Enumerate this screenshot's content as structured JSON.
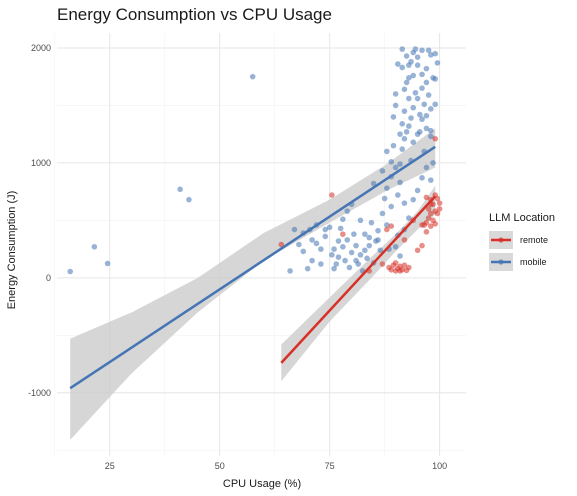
{
  "chart_data": {
    "type": "scatter",
    "title": "Energy Consumption vs CPU Usage",
    "xlabel": "CPU Usage (%)",
    "ylabel": "Energy Consumption (J)",
    "xlim": [
      13,
      106
    ],
    "ylim": [
      -1550,
      2130
    ],
    "xticks": [
      25,
      50,
      75,
      100
    ],
    "yticks": [
      -1000,
      0,
      1000,
      2000
    ],
    "grid": true,
    "legend": {
      "title": "LLM Location",
      "placement": "right",
      "entries": [
        "remote",
        "mobile"
      ]
    },
    "colors": {
      "remote": "#d73027",
      "mobile": "#4575b4",
      "band": "#cccccc"
    },
    "series": [
      {
        "name": "remote",
        "trend": {
          "x1": 64,
          "y1": -740,
          "x2": 99,
          "y2": 710
        },
        "band": [
          {
            "x": 64,
            "lo": -900,
            "hi": -580
          },
          {
            "x": 75,
            "lo": -380,
            "hi": -170
          },
          {
            "x": 85,
            "lo": 20,
            "hi": 200
          },
          {
            "x": 90,
            "lo": 230,
            "hi": 380
          },
          {
            "x": 95,
            "lo": 420,
            "hi": 580
          },
          {
            "x": 99,
            "lo": 550,
            "hi": 800
          }
        ],
        "points": [
          [
            64,
            290
          ],
          [
            75.5,
            720
          ],
          [
            78,
            380
          ],
          [
            84,
            60
          ],
          [
            87,
            120
          ],
          [
            88.5,
            90
          ],
          [
            89,
            70
          ],
          [
            89.5,
            110
          ],
          [
            90,
            60
          ],
          [
            90.5,
            80
          ],
          [
            91,
            100
          ],
          [
            91.5,
            70
          ],
          [
            92,
            110
          ],
          [
            92.5,
            65
          ],
          [
            93,
            90
          ],
          [
            90,
            130
          ],
          [
            91,
            60
          ],
          [
            88,
            420
          ],
          [
            89,
            450
          ],
          [
            92,
            330
          ],
          [
            94,
            500
          ],
          [
            95,
            240
          ],
          [
            96,
            280
          ],
          [
            96.5,
            460
          ],
          [
            97,
            400
          ],
          [
            97,
            700
          ],
          [
            97.5,
            600
          ],
          [
            97.5,
            520
          ],
          [
            98,
            680
          ],
          [
            98,
            560
          ],
          [
            98,
            450
          ],
          [
            98.5,
            640
          ],
          [
            98.5,
            500
          ],
          [
            99,
            720
          ],
          [
            99,
            580
          ],
          [
            99,
            470
          ],
          [
            99.5,
            690
          ],
          [
            99.5,
            560
          ],
          [
            100,
            650
          ],
          [
            100,
            600
          ],
          [
            97,
            480
          ],
          [
            98,
            640
          ],
          [
            99,
            1210
          ],
          [
            96,
            460
          ]
        ]
      },
      {
        "name": "mobile",
        "trend": {
          "x1": 16,
          "y1": -960,
          "x2": 99,
          "y2": 1140
        },
        "band": [
          {
            "x": 16,
            "lo": -1410,
            "hi": -530
          },
          {
            "x": 30,
            "lo": -830,
            "hi": -300
          },
          {
            "x": 45,
            "lo": -300,
            "hi": 0
          },
          {
            "x": 60,
            "lo": 150,
            "hi": 390
          },
          {
            "x": 75,
            "lo": 480,
            "hi": 680
          },
          {
            "x": 88,
            "lo": 760,
            "hi": 990
          },
          {
            "x": 99,
            "lo": 960,
            "hi": 1300
          }
        ],
        "points": [
          [
            16,
            55
          ],
          [
            21.5,
            270
          ],
          [
            24.5,
            125
          ],
          [
            41,
            770
          ],
          [
            43,
            680
          ],
          [
            57.5,
            1750
          ],
          [
            66,
            60
          ],
          [
            68,
            290
          ],
          [
            69,
            390
          ],
          [
            70.5,
            420
          ],
          [
            71,
            330
          ],
          [
            72,
            300
          ],
          [
            73,
            250
          ],
          [
            74,
            360
          ],
          [
            75,
            440
          ],
          [
            75.5,
            200
          ],
          [
            76,
            250
          ],
          [
            76.5,
            120
          ],
          [
            77,
            320
          ],
          [
            77.5,
            430
          ],
          [
            78,
            270
          ],
          [
            78.5,
            150
          ],
          [
            79,
            330
          ],
          [
            79.5,
            90
          ],
          [
            80,
            220
          ],
          [
            80.5,
            380
          ],
          [
            81,
            280
          ],
          [
            81.5,
            120
          ],
          [
            82,
            200
          ],
          [
            82.5,
            60
          ],
          [
            83,
            380
          ],
          [
            83.5,
            170
          ],
          [
            84,
            280
          ],
          [
            84.5,
            480
          ],
          [
            85,
            130
          ],
          [
            85.5,
            320
          ],
          [
            86,
            410
          ],
          [
            86.5,
            240
          ],
          [
            87,
            560
          ],
          [
            87.5,
            690
          ],
          [
            87,
            930
          ],
          [
            88,
            780
          ],
          [
            88.5,
            250
          ],
          [
            89,
            1010
          ],
          [
            89,
            880
          ],
          [
            89.5,
            1150
          ],
          [
            90,
            1600
          ],
          [
            90,
            1500
          ],
          [
            90.5,
            720
          ],
          [
            90.5,
            370
          ],
          [
            91,
            1250
          ],
          [
            91,
            990
          ],
          [
            91.5,
            1340
          ],
          [
            91.5,
            1120
          ],
          [
            92,
            1450
          ],
          [
            92,
            650
          ],
          [
            92.5,
            1700
          ],
          [
            92.5,
            1270
          ],
          [
            93,
            1850
          ],
          [
            93,
            1560
          ],
          [
            93.5,
            1390
          ],
          [
            93.5,
            1020
          ],
          [
            94,
            1960
          ],
          [
            94,
            1760
          ],
          [
            94.5,
            1610
          ],
          [
            95,
            1250
          ],
          [
            95,
            1850
          ],
          [
            95.5,
            1420
          ],
          [
            96,
            1980
          ],
          [
            96,
            1650
          ],
          [
            96.5,
            1100
          ],
          [
            97,
            1820
          ],
          [
            97,
            1410
          ],
          [
            97.5,
            1590
          ],
          [
            98,
            1230
          ],
          [
            98,
            1940
          ],
          [
            98.5,
            1000
          ],
          [
            99,
            1730
          ],
          [
            99,
            1510
          ],
          [
            99.5,
            1870
          ],
          [
            98,
            850
          ],
          [
            97,
            960
          ],
          [
            96,
            870
          ],
          [
            95,
            760
          ],
          [
            94,
            680
          ],
          [
            93,
            520
          ],
          [
            92,
            420
          ],
          [
            91,
            190
          ],
          [
            90,
            270
          ],
          [
            89,
            620
          ],
          [
            88,
            460
          ],
          [
            86,
            330
          ],
          [
            85,
            820
          ],
          [
            84,
            350
          ],
          [
            83,
            240
          ],
          [
            82,
            500
          ],
          [
            81,
            150
          ],
          [
            80,
            640
          ],
          [
            79,
            580
          ],
          [
            78,
            510
          ],
          [
            77,
            180
          ],
          [
            76,
            80
          ],
          [
            74,
            420
          ],
          [
            73,
            120
          ],
          [
            72,
            460
          ],
          [
            71,
            150
          ],
          [
            70,
            80
          ],
          [
            69,
            230
          ],
          [
            67,
            420
          ],
          [
            88,
            1100
          ],
          [
            89.5,
            1400
          ],
          [
            90.5,
            1860
          ],
          [
            91.5,
            1990
          ],
          [
            92,
            1210
          ],
          [
            93,
            1320
          ],
          [
            94,
            1480
          ],
          [
            95,
            1920
          ],
          [
            96,
            1380
          ],
          [
            97,
            1700
          ],
          [
            98,
            1280
          ],
          [
            99,
            1950
          ],
          [
            90,
            960
          ],
          [
            91,
            830
          ],
          [
            92,
            1640
          ],
          [
            93,
            1740
          ],
          [
            94,
            1180
          ],
          [
            95,
            1560
          ],
          [
            96,
            1770
          ],
          [
            97,
            1300
          ],
          [
            98,
            1470
          ],
          [
            93.5,
            1880
          ],
          [
            94.5,
            1990
          ],
          [
            92.5,
            1930
          ],
          [
            91.5,
            1830
          ],
          [
            95.5,
            1270
          ],
          [
            96.5,
            1510
          ],
          [
            97.5,
            1980
          ],
          [
            98.5,
            1740
          ]
        ]
      }
    ]
  }
}
